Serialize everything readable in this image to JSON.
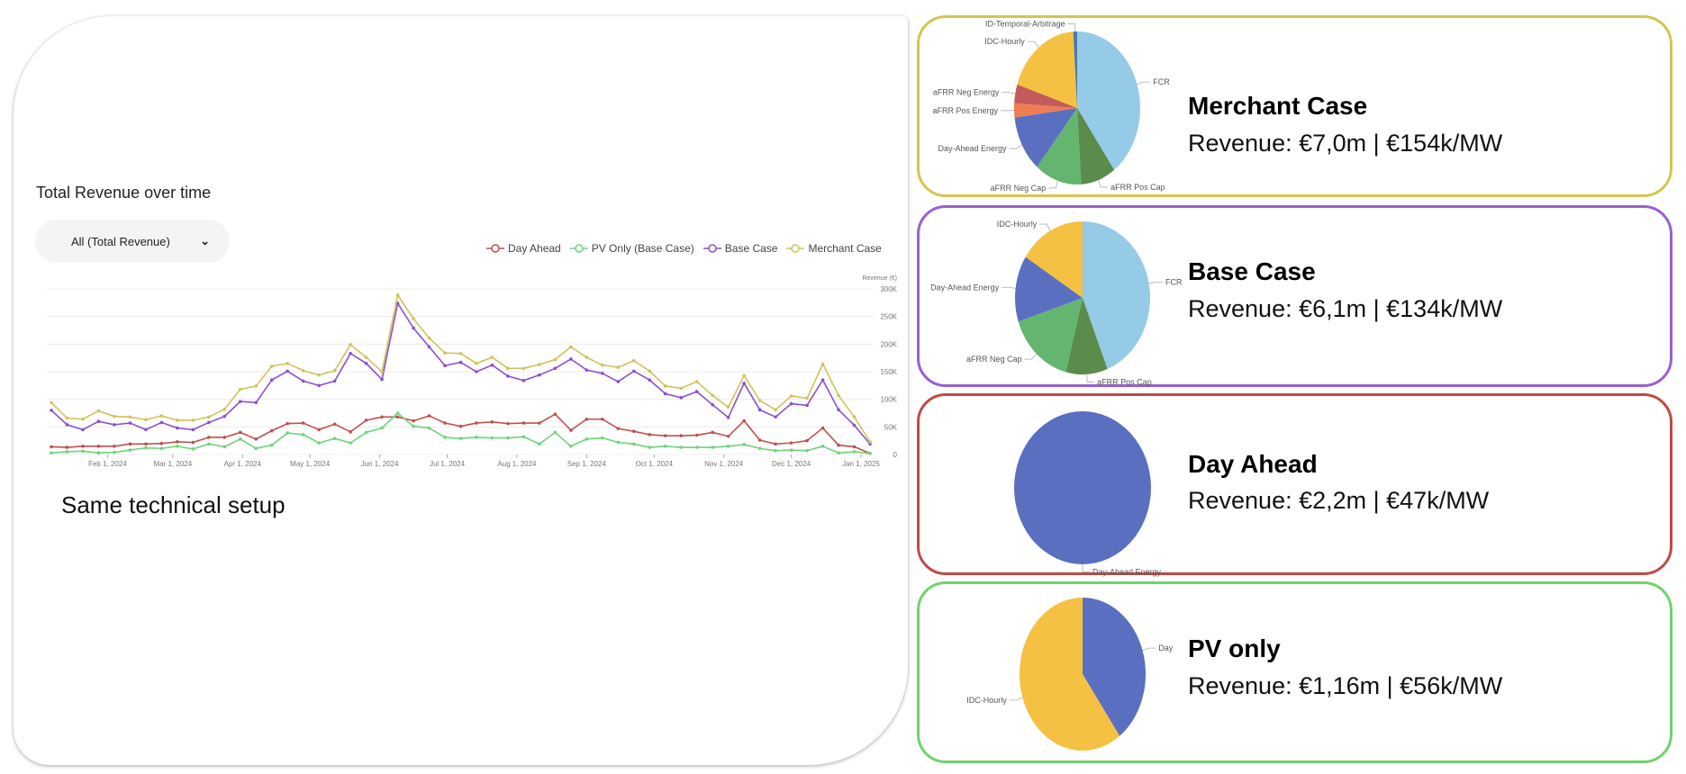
{
  "left": {
    "chart_title": "Total Revenue over time",
    "dropdown_value": "All (Total Revenue)",
    "note": "Same technical setup"
  },
  "colors": {
    "day_ahead": "#c0504d",
    "pv_only": "#6fd37a",
    "base_case": "#8b4fcf",
    "merchant_case": "#cfc35a"
  },
  "chart_data": [
    {
      "type": "line",
      "title": "Total Revenue over time",
      "ylabel": "Revenue (€)",
      "ylim": [
        0,
        300000
      ],
      "yticks": [
        "0",
        "50K",
        "100K",
        "150K",
        "200K",
        "250K",
        "300K"
      ],
      "yaxis_position": "right",
      "xticks": [
        "Feb 1, 2024",
        "Mar 1, 2024",
        "Apr 1, 2024",
        "May 1, 2024",
        "Jun 1, 2024",
        "Jul 1, 2024",
        "Aug 1, 2024",
        "Sep 1, 2024",
        "Oct 1, 2024",
        "Nov 1, 2024",
        "Dec 1, 2024",
        "Jan 1, 2025"
      ],
      "xtick_dates": [
        "2024-02-01",
        "2024-03-01",
        "2024-04-01",
        "2024-05-01",
        "2024-06-01",
        "2024-07-01",
        "2024-08-01",
        "2024-09-01",
        "2024-10-01",
        "2024-11-01",
        "2024-12-01",
        "2025-01-01"
      ],
      "grid": true,
      "legend_position": "top-right",
      "x": [
        "2024-01-07",
        "2024-01-14",
        "2024-01-21",
        "2024-01-28",
        "2024-02-04",
        "2024-02-11",
        "2024-02-18",
        "2024-02-25",
        "2024-03-03",
        "2024-03-10",
        "2024-03-17",
        "2024-03-24",
        "2024-03-31",
        "2024-04-07",
        "2024-04-14",
        "2024-04-21",
        "2024-04-28",
        "2024-05-05",
        "2024-05-12",
        "2024-05-19",
        "2024-05-26",
        "2024-06-02",
        "2024-06-09",
        "2024-06-16",
        "2024-06-23",
        "2024-06-30",
        "2024-07-07",
        "2024-07-14",
        "2024-07-21",
        "2024-07-28",
        "2024-08-04",
        "2024-08-11",
        "2024-08-18",
        "2024-08-25",
        "2024-09-01",
        "2024-09-08",
        "2024-09-15",
        "2024-09-22",
        "2024-09-29",
        "2024-10-06",
        "2024-10-13",
        "2024-10-20",
        "2024-10-27",
        "2024-11-03",
        "2024-11-10",
        "2024-11-17",
        "2024-11-24",
        "2024-12-01",
        "2024-12-08",
        "2024-12-15",
        "2024-12-22",
        "2024-12-29",
        "2025-01-05"
      ],
      "series": [
        {
          "name": "Day Ahead",
          "color": "#c0504d",
          "values": [
            14000,
            13000,
            15000,
            15000,
            15000,
            19000,
            19000,
            20000,
            23000,
            22000,
            31000,
            31000,
            40000,
            28000,
            43000,
            56000,
            57000,
            45000,
            55000,
            41000,
            62000,
            68000,
            68000,
            61000,
            70000,
            57000,
            51000,
            57000,
            59000,
            56000,
            57000,
            57000,
            73000,
            44000,
            64000,
            64000,
            47000,
            42000,
            36000,
            34000,
            34000,
            35000,
            40000,
            33000,
            61000,
            26000,
            19000,
            21000,
            25000,
            48000,
            17000,
            14000,
            2000
          ]
        },
        {
          "name": "PV Only (Base Case)",
          "color": "#6fd37a",
          "values": [
            3000,
            5000,
            6000,
            3000,
            4000,
            8000,
            12000,
            11000,
            15000,
            10000,
            19000,
            14000,
            28000,
            11000,
            17000,
            39000,
            36000,
            21000,
            29000,
            21000,
            40000,
            48000,
            75000,
            51000,
            48000,
            31000,
            29000,
            31000,
            30000,
            30000,
            32000,
            19000,
            40000,
            15000,
            28000,
            30000,
            22000,
            19000,
            13000,
            15000,
            13000,
            13000,
            13000,
            15000,
            18000,
            11000,
            7000,
            8000,
            7000,
            15000,
            3000,
            5000,
            2000
          ]
        },
        {
          "name": "Base Case",
          "color": "#8b4fcf",
          "values": [
            80000,
            54000,
            45000,
            60000,
            54000,
            57000,
            45000,
            58000,
            48000,
            45000,
            58000,
            69000,
            96000,
            94000,
            135000,
            151000,
            133000,
            125000,
            133000,
            183000,
            165000,
            136000,
            274000,
            229000,
            195000,
            161000,
            167000,
            150000,
            162000,
            142000,
            134000,
            144000,
            156000,
            173000,
            153000,
            147000,
            132000,
            151000,
            135000,
            110000,
            103000,
            114000,
            90000,
            67000,
            129000,
            81000,
            68000,
            92000,
            89000,
            135000,
            81000,
            53000,
            19000
          ]
        },
        {
          "name": "Merchant Case",
          "color": "#cfc35a",
          "values": [
            94000,
            66000,
            64000,
            79000,
            69000,
            68000,
            63000,
            70000,
            62000,
            62000,
            68000,
            82000,
            118000,
            124000,
            160000,
            165000,
            152000,
            144000,
            152000,
            199000,
            176000,
            150000,
            289000,
            246000,
            211000,
            184000,
            183000,
            165000,
            176000,
            156000,
            156000,
            163000,
            172000,
            195000,
            176000,
            162000,
            158000,
            170000,
            151000,
            124000,
            120000,
            132000,
            107000,
            86000,
            143000,
            98000,
            81000,
            106000,
            102000,
            164000,
            107000,
            68000,
            23000
          ]
        }
      ]
    },
    {
      "type": "pie",
      "title": "Merchant Case",
      "slices": [
        {
          "label": "FCR",
          "value": 40,
          "color": "#96cbe7"
        },
        {
          "label": "aFRR Pos Cap",
          "value": 9,
          "color": "#5b8c4b"
        },
        {
          "label": "aFRR Neg Cap",
          "value": 12,
          "color": "#64b56f"
        },
        {
          "label": "Day-Ahead Energy",
          "value": 12,
          "color": "#5b6fc1"
        },
        {
          "label": "aFRR Pos Energy",
          "value": 3,
          "color": "#ee7c55"
        },
        {
          "label": "aFRR Neg Energy",
          "value": 4,
          "color": "#c55a5c"
        },
        {
          "label": "IDC-Hourly",
          "value": 19,
          "color": "#f4c142"
        },
        {
          "label": "ID-Temporal-Arbitrage",
          "value": 1,
          "color": "#4a79b1"
        }
      ]
    },
    {
      "type": "pie",
      "title": "Base Case",
      "slices": [
        {
          "label": "FCR",
          "value": 44,
          "color": "#96cbe7"
        },
        {
          "label": "aFRR Pos Cap",
          "value": 10,
          "color": "#5b8c4b"
        },
        {
          "label": "aFRR Neg Cap",
          "value": 16,
          "color": "#64b56f"
        },
        {
          "label": "Day-Ahead Energy",
          "value": 14,
          "color": "#5b6fc1"
        },
        {
          "label": "IDC-Hourly",
          "value": 16,
          "color": "#f4c142"
        }
      ]
    },
    {
      "type": "pie",
      "title": "Day Ahead",
      "slices": [
        {
          "label": "Day-Ahead Energy",
          "value": 100,
          "color": "#5b6fc1"
        }
      ]
    },
    {
      "type": "pie",
      "title": "PV only",
      "slices": [
        {
          "label": "Day",
          "value": 40,
          "color": "#5b6fc1"
        },
        {
          "label": "IDC-Hourly",
          "value": 60,
          "color": "#f4c142"
        }
      ]
    }
  ],
  "cards": [
    {
      "title": "Merchant Case",
      "revenue": "Revenue: €7,0m | €154k/MW",
      "border": "#d4c650"
    },
    {
      "title": "Base Case",
      "revenue": "Revenue: €6,1m | €134k/MW",
      "border": "#9a5fd0"
    },
    {
      "title": "Day Ahead",
      "revenue": "Revenue: €2,2m | €47k/MW",
      "border": "#bf4a45"
    },
    {
      "title": "PV only",
      "revenue": "Revenue: €1,16m | €56k/MW",
      "border": "#6fd36e"
    }
  ]
}
